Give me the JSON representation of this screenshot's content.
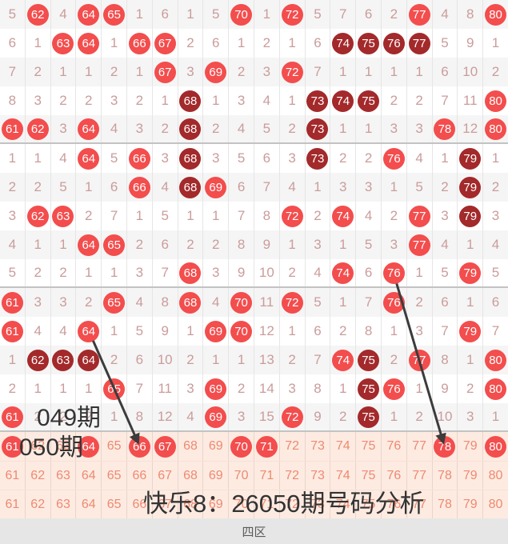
{
  "chart_data": {
    "type": "table",
    "title": "快乐8：26050期号码分析",
    "zone_label": "四区",
    "number_range": [
      61,
      80
    ],
    "columns": 20,
    "cell_codes": {
      "C": "drawn number (red ball)",
      "D": "drawn number (dark red ball)",
      "plain": "miss count"
    },
    "period_rows": [
      [
        "5",
        "C62",
        "4",
        "C64",
        "C65",
        "1",
        "6",
        "1",
        "5",
        "C70",
        "1",
        "C72",
        "5",
        "7",
        "6",
        "2",
        "C77",
        "4",
        "8",
        "C80"
      ],
      [
        "6",
        "1",
        "C63",
        "C64",
        "1",
        "C66",
        "C67",
        "2",
        "6",
        "1",
        "2",
        "1",
        "6",
        "D74",
        "D75",
        "D76",
        "D77",
        "5",
        "9",
        "1"
      ],
      [
        "7",
        "2",
        "1",
        "1",
        "2",
        "1",
        "C67",
        "3",
        "C69",
        "2",
        "3",
        "C72",
        "7",
        "1",
        "1",
        "1",
        "1",
        "6",
        "10",
        "2"
      ],
      [
        "8",
        "3",
        "2",
        "2",
        "3",
        "2",
        "1",
        "D68",
        "1",
        "3",
        "4",
        "1",
        "D73",
        "D74",
        "D75",
        "2",
        "2",
        "7",
        "11",
        "C80"
      ],
      [
        "C61",
        "C62",
        "3",
        "C64",
        "4",
        "3",
        "2",
        "D68",
        "2",
        "4",
        "5",
        "2",
        "D73",
        "1",
        "1",
        "3",
        "3",
        "C78",
        "12",
        "C80"
      ],
      [
        "1",
        "1",
        "4",
        "C64",
        "5",
        "C66",
        "3",
        "D68",
        "3",
        "5",
        "6",
        "3",
        "D73",
        "2",
        "2",
        "C76",
        "4",
        "1",
        "D79",
        "1"
      ],
      [
        "2",
        "2",
        "5",
        "1",
        "6",
        "C66",
        "4",
        "D68",
        "C69",
        "6",
        "7",
        "4",
        "1",
        "3",
        "3",
        "1",
        "5",
        "2",
        "D79",
        "2"
      ],
      [
        "3",
        "C62",
        "C63",
        "2",
        "7",
        "1",
        "5",
        "1",
        "1",
        "7",
        "8",
        "C72",
        "2",
        "C74",
        "4",
        "2",
        "C77",
        "3",
        "D79",
        "3"
      ],
      [
        "4",
        "1",
        "1",
        "C64",
        "C65",
        "2",
        "6",
        "2",
        "2",
        "8",
        "9",
        "1",
        "3",
        "1",
        "5",
        "3",
        "C77",
        "4",
        "1",
        "4"
      ],
      [
        "5",
        "2",
        "2",
        "1",
        "1",
        "3",
        "7",
        "C68",
        "3",
        "9",
        "10",
        "2",
        "4",
        "C74",
        "6",
        "C76",
        "1",
        "5",
        "C79",
        "5"
      ],
      [
        "C61",
        "3",
        "3",
        "2",
        "C65",
        "4",
        "8",
        "C68",
        "4",
        "C70",
        "11",
        "C72",
        "5",
        "1",
        "7",
        "C76",
        "2",
        "6",
        "1",
        "6"
      ],
      [
        "C61",
        "4",
        "4",
        "C64",
        "1",
        "5",
        "9",
        "1",
        "C69",
        "C70",
        "12",
        "1",
        "6",
        "2",
        "8",
        "1",
        "3",
        "7",
        "C79",
        "7"
      ],
      [
        "1",
        "D62",
        "D63",
        "D64",
        "2",
        "6",
        "10",
        "2",
        "1",
        "1",
        "13",
        "2",
        "7",
        "C74",
        "D75",
        "2",
        "C77",
        "8",
        "1",
        "C80"
      ],
      [
        "2",
        "1",
        "1",
        "1",
        "C65",
        "7",
        "11",
        "3",
        "C69",
        "2",
        "14",
        "3",
        "8",
        "1",
        "D75",
        "C76",
        "1",
        "9",
        "2",
        "C80"
      ],
      [
        "C61",
        "2",
        "2",
        "2",
        "1",
        "8",
        "12",
        "4",
        "C69",
        "3",
        "15",
        "C72",
        "9",
        "2",
        "D75",
        "1",
        "2",
        "10",
        "3",
        "1"
      ]
    ],
    "result_row": [
      "C61",
      "62",
      "63",
      "C64",
      "65",
      "C66",
      "C67",
      "68",
      "69",
      "C70",
      "C71",
      "72",
      "73",
      "74",
      "75",
      "76",
      "77",
      "C78",
      "79",
      "C80"
    ],
    "reference_rows": [
      [
        "61",
        "62",
        "63",
        "64",
        "65",
        "66",
        "67",
        "68",
        "69",
        "70",
        "71",
        "72",
        "73",
        "74",
        "75",
        "76",
        "77",
        "78",
        "79",
        "80"
      ],
      [
        "61",
        "62",
        "63",
        "64",
        "65",
        "66",
        "67",
        "68",
        "69",
        "70",
        "71",
        "72",
        "73",
        "74",
        "75",
        "76",
        "77",
        "78",
        "79",
        "80"
      ]
    ],
    "trend_lines": [
      {
        "from_row": 12,
        "from_col": 4,
        "to_row": 16,
        "to_col": 6
      },
      {
        "from_row": 10,
        "from_col": 16,
        "to_row": 16,
        "to_col": 18
      }
    ]
  },
  "overlays": {
    "period_label_prev": "049期",
    "period_label_current": "050期",
    "caption": "快乐8：26050期号码分析"
  },
  "footer": {
    "zone_label": "四区"
  },
  "colors": {
    "hit_ball": "#f34d4d",
    "repeat_ball": "#a3292b",
    "miss_text": "#cb9c9c",
    "ref_row_bg": "#fdebe2",
    "ref_text": "#ee8a70",
    "trend_line": "#3c3c3c"
  }
}
